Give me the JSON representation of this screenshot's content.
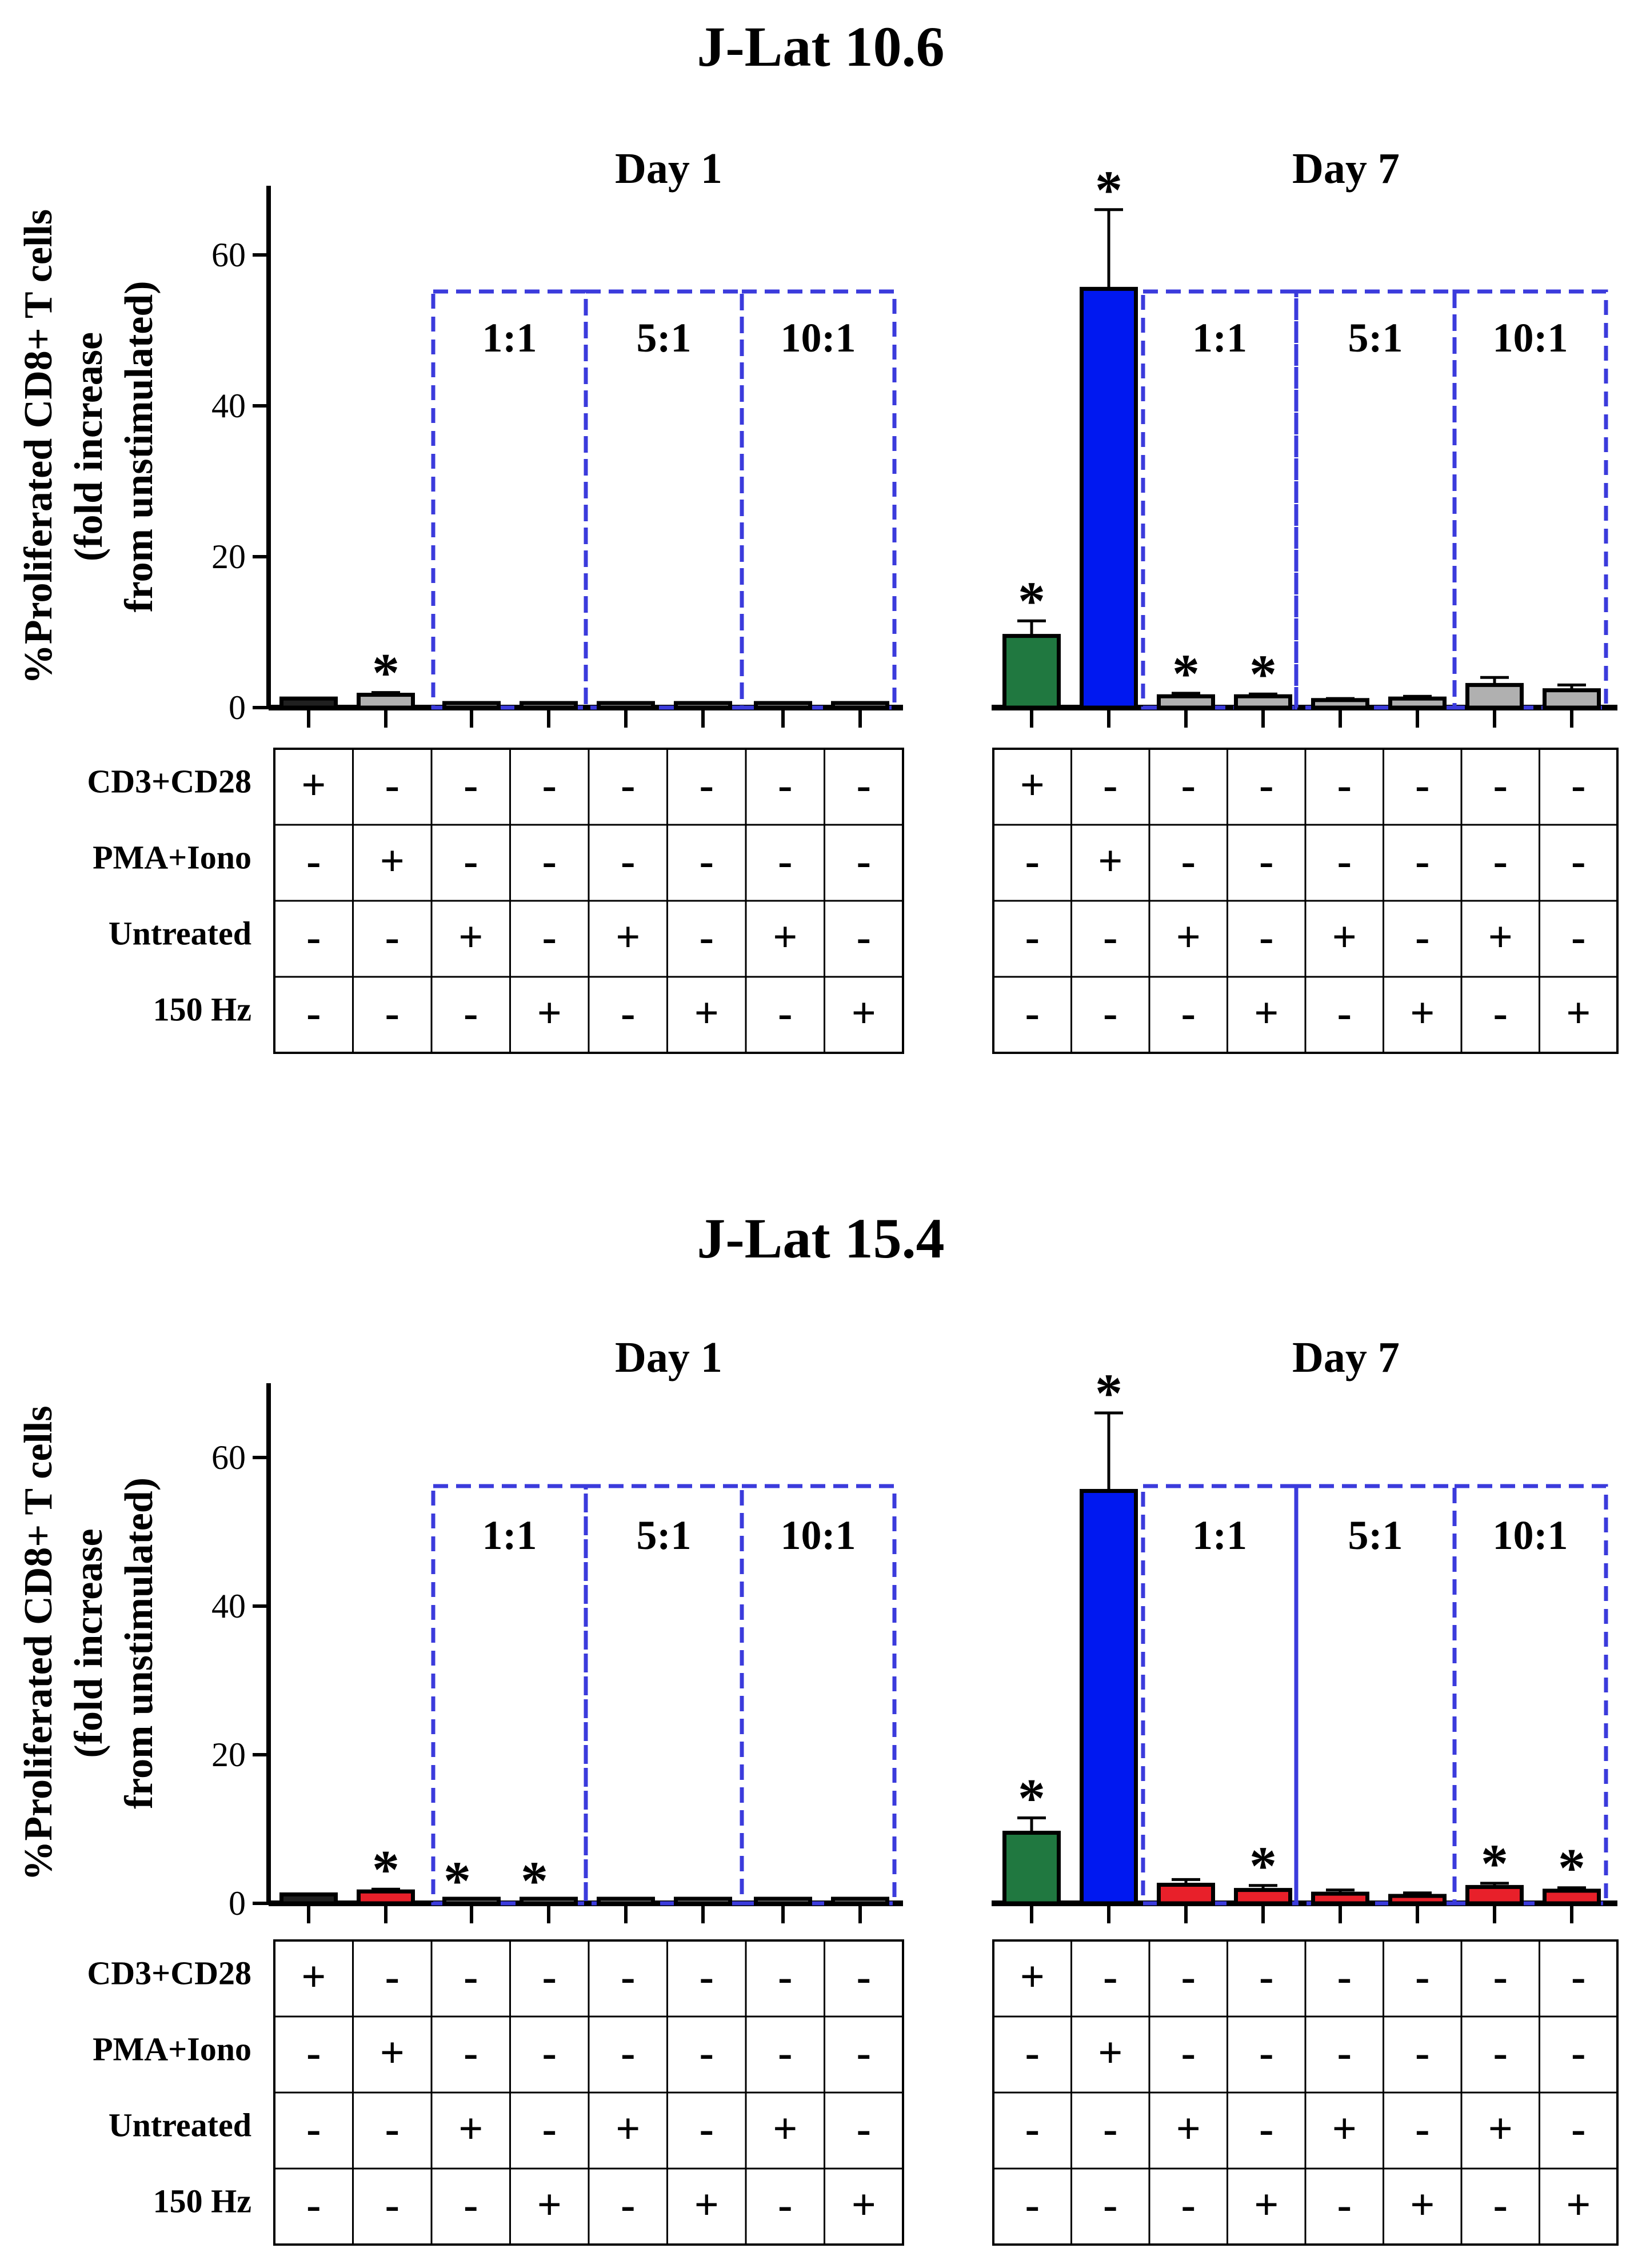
{
  "colors": {
    "dashed_box": "#3b3bdc",
    "axis": "#000000",
    "treatment_key": {
      "dark": "#202020",
      "gray": "#b0b0b0",
      "red": "#e8202a",
      "green": "#207840",
      "blue": "#0018f0"
    }
  },
  "chart_data": [
    {
      "type": "bar",
      "title": "J-Lat 10.6",
      "ylabel_lines": [
        "%Proliferated CD8+ T cells",
        "(fold increase",
        "from unstimulated)"
      ],
      "yticks": [
        "0",
        "20",
        "40",
        "60"
      ],
      "ylim": [
        0,
        70
      ],
      "groups": [
        {
          "label": "Day 1",
          "bars": [
            {
              "value": 1.2,
              "error": 0,
              "color": "dark",
              "star": ""
            },
            {
              "value": 1.7,
              "error": 0.3,
              "color": "gray",
              "star": "*"
            },
            {
              "value": 0.4,
              "error": 0,
              "color": "gray",
              "star": ""
            },
            {
              "value": 0.4,
              "error": 0,
              "color": "gray",
              "star": ""
            },
            {
              "value": 0.4,
              "error": 0,
              "color": "gray",
              "star": ""
            },
            {
              "value": 0.4,
              "error": 0,
              "color": "gray",
              "star": ""
            },
            {
              "value": 0.4,
              "error": 0,
              "color": "gray",
              "star": ""
            },
            {
              "value": 0.4,
              "error": 0,
              "color": "gray",
              "star": ""
            }
          ],
          "ratio_boxes": [
            "1:1",
            "5:1",
            "10:1"
          ],
          "table": [
            {
              "label": "CD3+CD28",
              "signs": [
                "+",
                "-",
                "-",
                "-",
                "-",
                "-",
                "-",
                "-"
              ]
            },
            {
              "label": "PMA+Iono",
              "signs": [
                "-",
                "+",
                "-",
                "-",
                "-",
                "-",
                "-",
                "-"
              ]
            },
            {
              "label": "Untreated",
              "signs": [
                "-",
                "-",
                "+",
                "-",
                "+",
                "-",
                "+",
                "-"
              ]
            },
            {
              "label": "150 Hz",
              "signs": [
                "-",
                "-",
                "-",
                "+",
                "-",
                "+",
                "-",
                "+"
              ]
            }
          ]
        },
        {
          "label": "Day 7",
          "bars": [
            {
              "value": 9.5,
              "error": 2.0,
              "color": "green",
              "star": "*"
            },
            {
              "value": 55.5,
              "error": 10.5,
              "color": "blue",
              "star": "*"
            },
            {
              "value": 1.5,
              "error": 0.4,
              "color": "gray",
              "star": "*"
            },
            {
              "value": 1.5,
              "error": 0.3,
              "color": "gray",
              "star": "*"
            },
            {
              "value": 1.0,
              "error": 0.2,
              "color": "gray",
              "star": ""
            },
            {
              "value": 1.2,
              "error": 0.3,
              "color": "gray",
              "star": ""
            },
            {
              "value": 3.0,
              "error": 1.0,
              "color": "gray",
              "star": ""
            },
            {
              "value": 2.3,
              "error": 0.7,
              "color": "gray",
              "star": ""
            }
          ],
          "ratio_boxes": [
            "1:1",
            "5:1",
            "10:1"
          ],
          "table": [
            {
              "label": "CD3+CD28",
              "signs": [
                "+",
                "-",
                "-",
                "-",
                "-",
                "-",
                "-",
                "-"
              ]
            },
            {
              "label": "PMA+Iono",
              "signs": [
                "-",
                "+",
                "-",
                "-",
                "-",
                "-",
                "-",
                "-"
              ]
            },
            {
              "label": "Untreated",
              "signs": [
                "-",
                "-",
                "+",
                "-",
                "+",
                "-",
                "+",
                "-"
              ]
            },
            {
              "label": "150 Hz",
              "signs": [
                "-",
                "-",
                "-",
                "+",
                "-",
                "+",
                "-",
                "+"
              ]
            }
          ]
        }
      ]
    },
    {
      "type": "bar",
      "title": "J-Lat 15.4",
      "ylabel_lines": [
        "%Proliferated CD8+ T cells",
        "(fold increase",
        "from unstimulated)"
      ],
      "yticks": [
        "0",
        "20",
        "40",
        "60"
      ],
      "ylim": [
        0,
        70
      ],
      "groups": [
        {
          "label": "Day 1",
          "bars": [
            {
              "value": 1.2,
              "error": 0,
              "color": "dark",
              "star": ""
            },
            {
              "value": 1.6,
              "error": 0.3,
              "color": "red",
              "star": "*"
            },
            {
              "value": 0.4,
              "error": 0,
              "color": "gray",
              "star": "*"
            },
            {
              "value": 0.4,
              "error": 0,
              "color": "gray",
              "star": "*"
            },
            {
              "value": 0.4,
              "error": 0,
              "color": "gray",
              "star": ""
            },
            {
              "value": 0.4,
              "error": 0,
              "color": "gray",
              "star": ""
            },
            {
              "value": 0.4,
              "error": 0,
              "color": "gray",
              "star": ""
            },
            {
              "value": 0.4,
              "error": 0,
              "color": "gray",
              "star": ""
            }
          ],
          "ratio_boxes": [
            "1:1",
            "5:1",
            "10:1"
          ],
          "table": [
            {
              "label": "CD3+CD28",
              "signs": [
                "+",
                "-",
                "-",
                "-",
                "-",
                "-",
                "-",
                "-"
              ]
            },
            {
              "label": "PMA+Iono",
              "signs": [
                "-",
                "+",
                "-",
                "-",
                "-",
                "-",
                "-",
                "-"
              ]
            },
            {
              "label": "Untreated",
              "signs": [
                "-",
                "-",
                "+",
                "-",
                "+",
                "-",
                "+",
                "-"
              ]
            },
            {
              "label": "150 Hz",
              "signs": [
                "-",
                "-",
                "-",
                "+",
                "-",
                "+",
                "-",
                "+"
              ]
            }
          ]
        },
        {
          "label": "Day 7",
          "bars": [
            {
              "value": 9.5,
              "error": 2.0,
              "color": "green",
              "star": "*"
            },
            {
              "value": 55.5,
              "error": 10.5,
              "color": "blue",
              "star": "*"
            },
            {
              "value": 2.5,
              "error": 0.7,
              "color": "red",
              "star": ""
            },
            {
              "value": 1.8,
              "error": 0.6,
              "color": "red",
              "star": "*"
            },
            {
              "value": 1.3,
              "error": 0.5,
              "color": "red",
              "star": ""
            },
            {
              "value": 1.0,
              "error": 0.4,
              "color": "red",
              "star": ""
            },
            {
              "value": 2.2,
              "error": 0.5,
              "color": "red",
              "star": "*"
            },
            {
              "value": 1.7,
              "error": 0.4,
              "color": "red",
              "star": "*"
            }
          ],
          "ratio_boxes": [
            "1:1",
            "5:1",
            "10:1"
          ],
          "table": [
            {
              "label": "CD3+CD28",
              "signs": [
                "+",
                "-",
                "-",
                "-",
                "-",
                "-",
                "-",
                "-"
              ]
            },
            {
              "label": "PMA+Iono",
              "signs": [
                "-",
                "+",
                "-",
                "-",
                "-",
                "-",
                "-",
                "-"
              ]
            },
            {
              "label": "Untreated",
              "signs": [
                "-",
                "-",
                "+",
                "-",
                "+",
                "-",
                "+",
                "-"
              ]
            },
            {
              "label": "150 Hz",
              "signs": [
                "-",
                "-",
                "-",
                "+",
                "-",
                "+",
                "-",
                "+"
              ]
            }
          ]
        }
      ]
    }
  ]
}
